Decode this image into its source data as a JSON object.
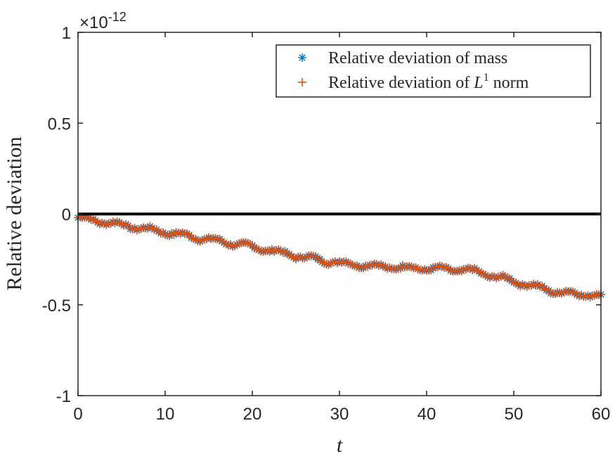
{
  "chart_data": {
    "type": "scatter",
    "xlabel": "t",
    "ylabel": "Relative deviation",
    "xlim": [
      0,
      60
    ],
    "ylim": [
      -1,
      1
    ],
    "xticks": [
      "0",
      "10",
      "20",
      "30",
      "40",
      "50",
      "60"
    ],
    "yticks": [
      "-1",
      "-0.5",
      "0",
      "0.5",
      "1"
    ],
    "y_exponent_label": "×10",
    "y_exponent_power": "-12",
    "reference_line": {
      "y": 0
    },
    "series_colors": [
      "#0072BD",
      "#D95319"
    ],
    "legend": {
      "position": "top-right",
      "entries": [
        {
          "text": "Relative deviation of mass",
          "marker": "asterisk"
        },
        {
          "text_before": "Relative deviation of ",
          "math_var": "L",
          "superscript": "1",
          "text_after": " norm",
          "marker": "plus"
        }
      ]
    },
    "series": [
      {
        "name": "Relative deviation of mass",
        "x": [
          0,
          5,
          10,
          15,
          20,
          25,
          30,
          35,
          40,
          45,
          50,
          55,
          60
        ],
        "y": [
          -0.02,
          -0.06,
          -0.1,
          -0.14,
          -0.18,
          -0.23,
          -0.27,
          -0.29,
          -0.3,
          -0.31,
          -0.37,
          -0.43,
          -0.45
        ]
      },
      {
        "name": "Relative deviation of L1 norm",
        "x": [
          0,
          5,
          10,
          15,
          20,
          25,
          30,
          35,
          40,
          45,
          50,
          55,
          60
        ],
        "y": [
          -0.02,
          -0.06,
          -0.1,
          -0.14,
          -0.18,
          -0.23,
          -0.27,
          -0.29,
          -0.3,
          -0.31,
          -0.37,
          -0.43,
          -0.45
        ]
      }
    ]
  }
}
